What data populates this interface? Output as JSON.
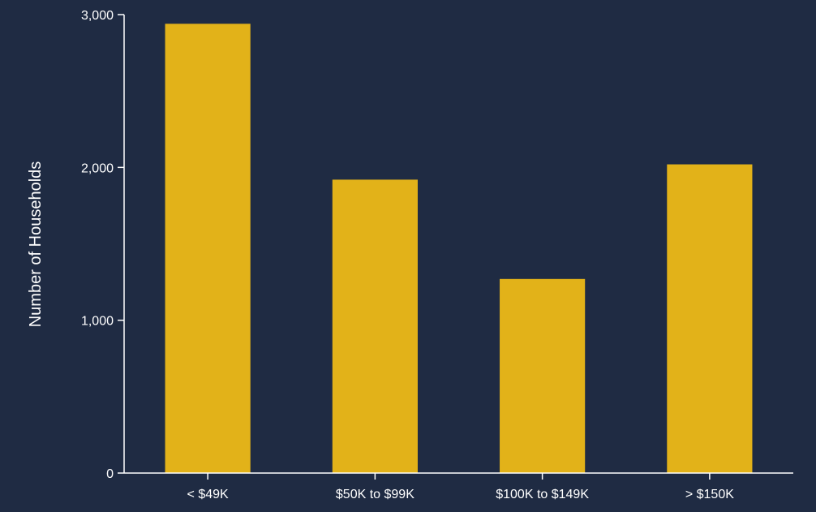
{
  "chart_data": {
    "type": "bar",
    "title": "",
    "xlabel": "",
    "ylabel": "Number of Households",
    "categories": [
      "< $49K",
      "$50K to $99K",
      "$100K to $149K",
      "> $150K"
    ],
    "values": [
      2940,
      1920,
      1270,
      2020
    ],
    "ylim": [
      0,
      3000
    ],
    "yticks": [
      0,
      1000,
      2000,
      3000
    ],
    "ytick_labels": [
      "0",
      "1,000",
      "2,000",
      "3,000"
    ],
    "grid": false,
    "colors": {
      "background": "#1f2b43",
      "bar": "#e2b219",
      "text": "#ffffff"
    }
  }
}
